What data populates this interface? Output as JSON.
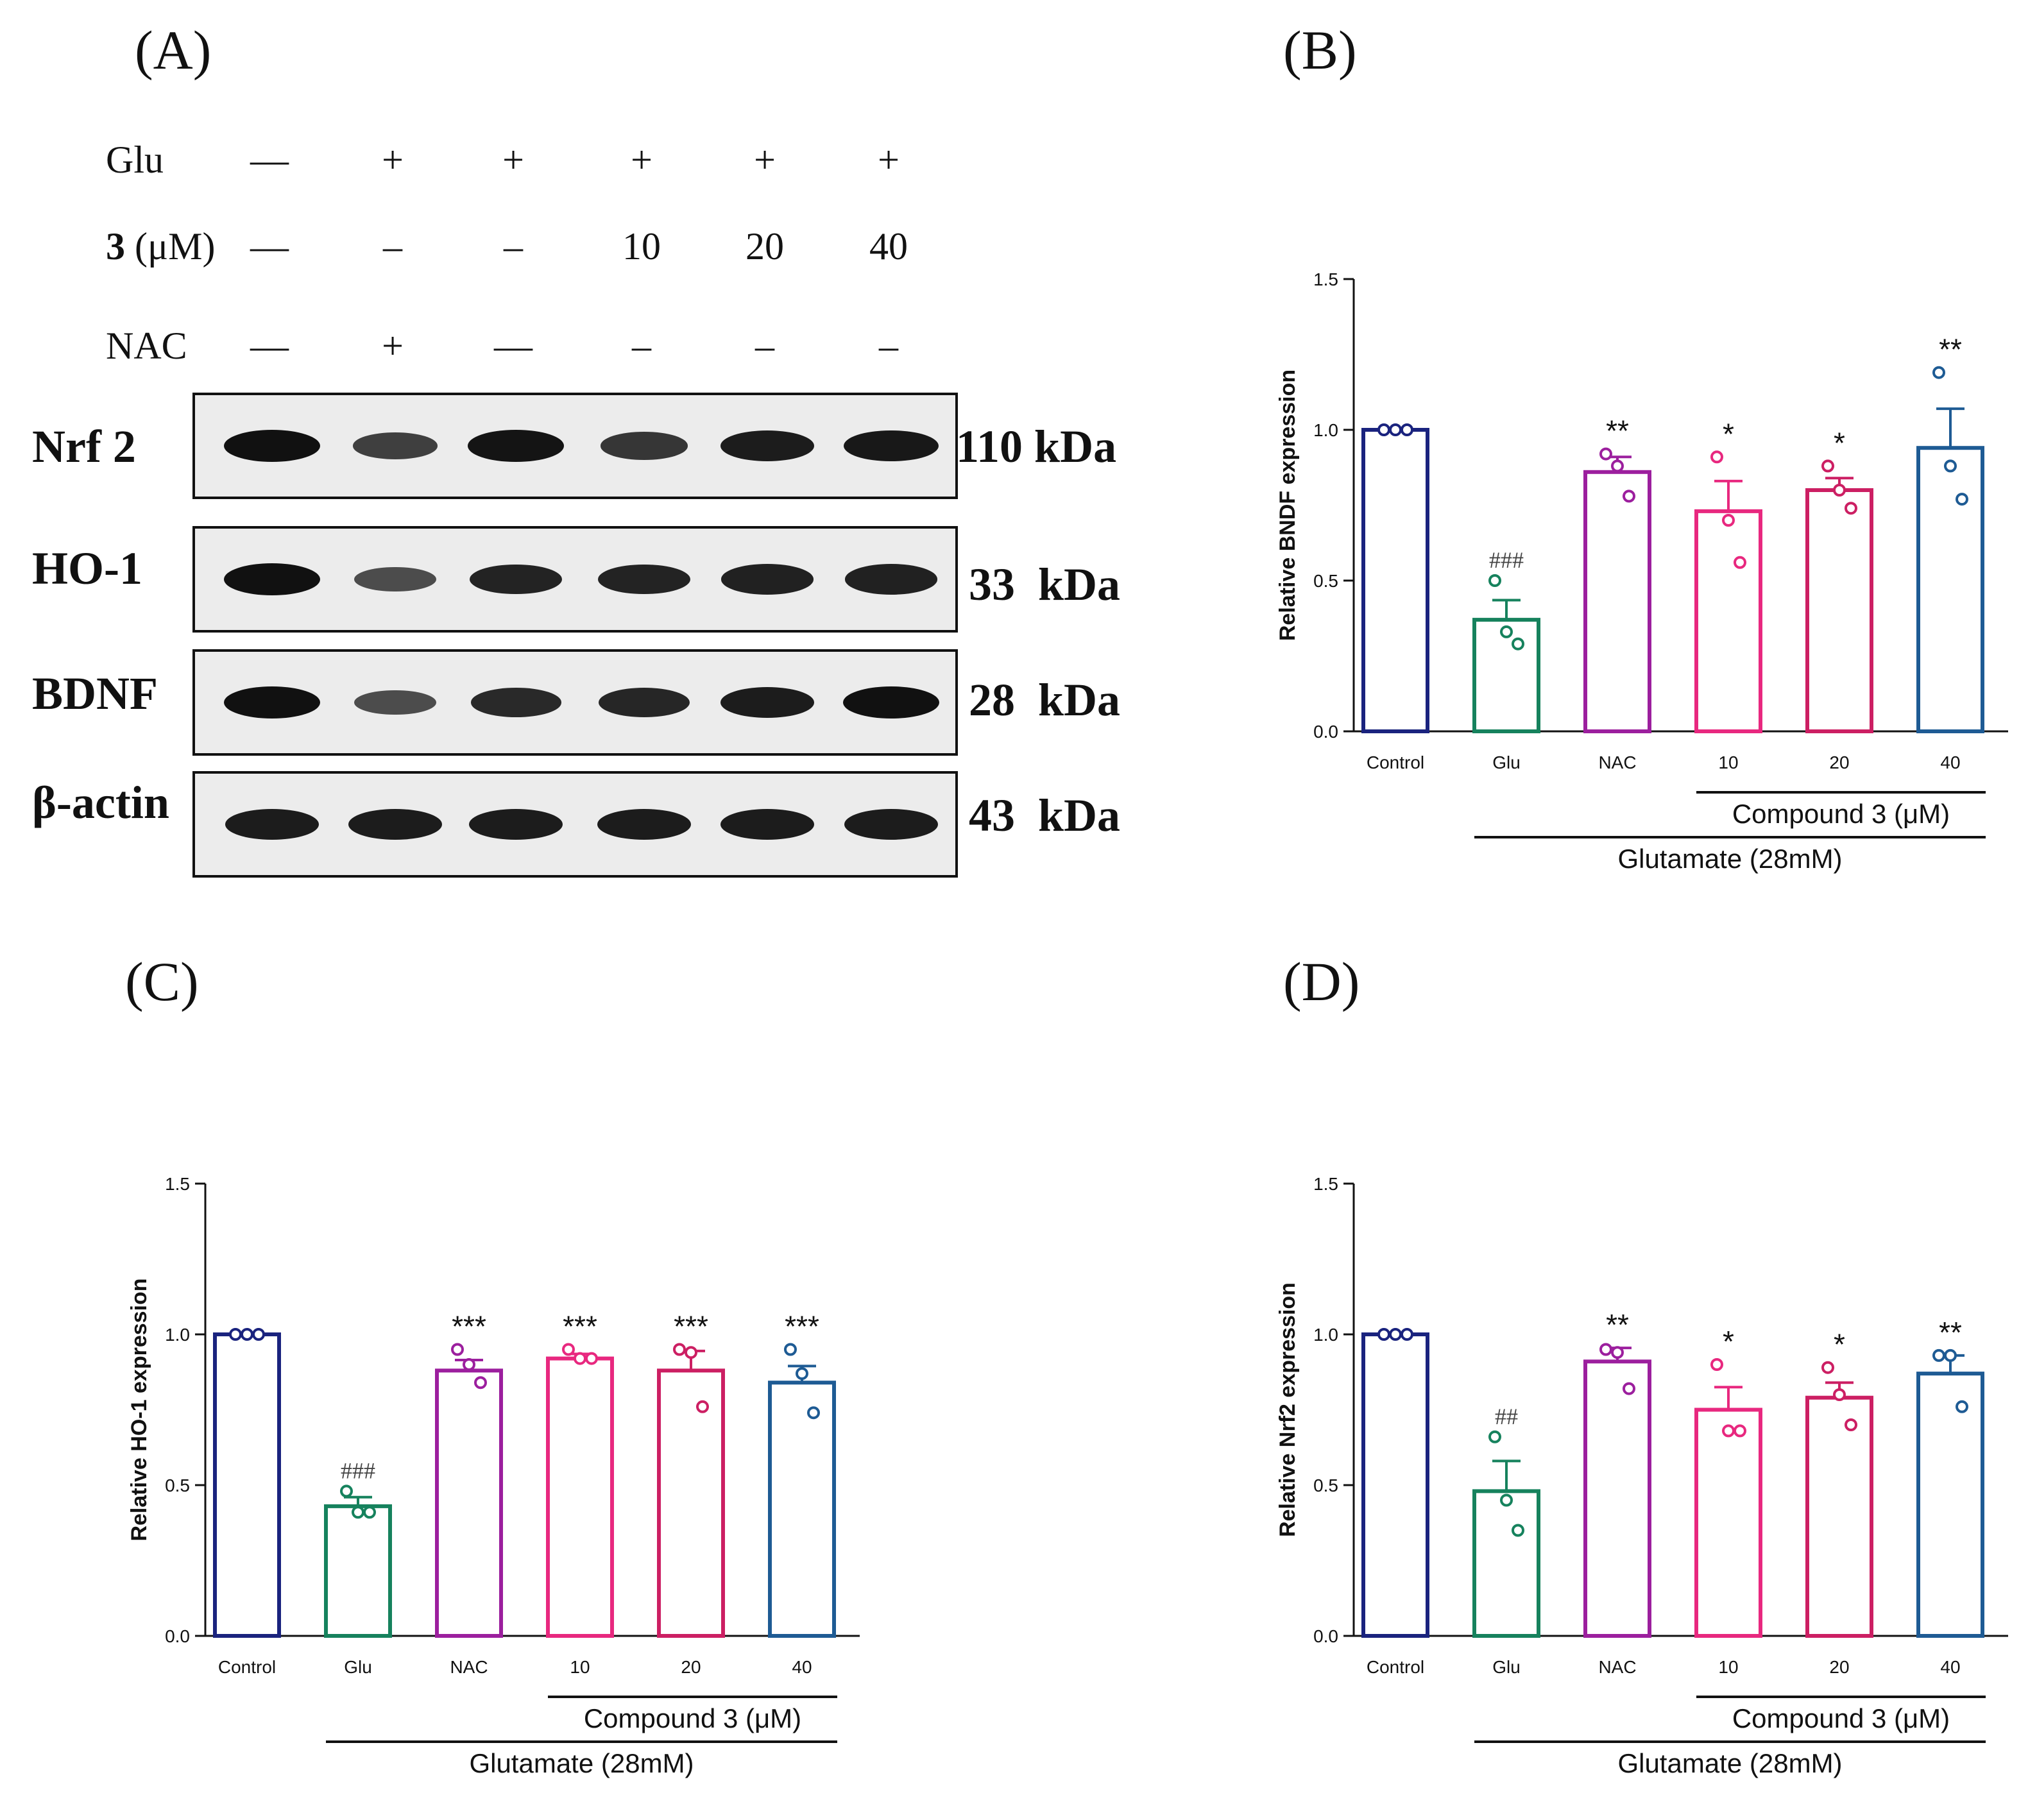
{
  "panel_letters": {
    "A": "(A)",
    "B": "(B)",
    "C": "(C)",
    "D": "(D)"
  },
  "western_blot": {
    "treatments": [
      {
        "label": "Glu",
        "bold_prefix": "",
        "cells": [
          "—",
          "+",
          "+",
          "+",
          "+",
          "+"
        ]
      },
      {
        "label": " (μM)",
        "bold_prefix": "3",
        "cells": [
          "—",
          "–",
          "–",
          "10",
          "20",
          "40"
        ]
      },
      {
        "label": "NAC",
        "bold_prefix": "",
        "cells": [
          "—",
          "+",
          "—",
          "–",
          "–",
          "–"
        ]
      }
    ],
    "proteins": [
      {
        "name": "Nrf 2",
        "kda": "110 kDa",
        "intensity": [
          1.0,
          0.62,
          0.98,
          0.7,
          0.9,
          0.95
        ]
      },
      {
        "name": "HO-1",
        "kda": "33  kDa",
        "intensity": [
          1.0,
          0.5,
          0.85,
          0.85,
          0.88,
          0.88
        ]
      },
      {
        "name": "BDNF",
        "kda": "28  kDa",
        "intensity": [
          1.0,
          0.5,
          0.8,
          0.82,
          0.9,
          1.0
        ]
      },
      {
        "name": "β-actin",
        "kda": "43  kDa",
        "intensity": [
          0.9,
          0.9,
          0.9,
          0.9,
          0.9,
          0.9
        ]
      }
    ]
  },
  "chart_data": [
    {
      "type": "bar",
      "panel": "B",
      "title": "",
      "ylabel": "Relative BNDF expression",
      "xlabel": "",
      "ylim": [
        0.0,
        1.5
      ],
      "yticks": [
        "0.0",
        "0.5",
        "1.0",
        "1.5"
      ],
      "categories": [
        "Control",
        "Glu",
        "NAC",
        "10",
        "20",
        "40"
      ],
      "colors": [
        "#1a237e",
        "#16825d",
        "#9c1f9e",
        "#e8287f",
        "#cc1f63",
        "#1e5b94"
      ],
      "values": [
        1.0,
        0.37,
        0.86,
        0.73,
        0.8,
        0.94
      ],
      "errors": [
        0.0,
        0.065,
        0.05,
        0.1,
        0.04,
        0.13
      ],
      "points": [
        [
          1.0,
          1.0,
          1.0
        ],
        [
          0.5,
          0.33,
          0.29
        ],
        [
          0.92,
          0.88,
          0.78
        ],
        [
          0.91,
          0.7,
          0.56
        ],
        [
          0.88,
          0.8,
          0.74
        ],
        [
          1.19,
          0.88,
          0.77
        ]
      ],
      "significance": [
        "",
        "###",
        "**",
        "*",
        "*",
        "**"
      ],
      "bracket_compound": "Compound 3 (μM)",
      "bracket_glutamate": "Glutamate (28mM)"
    },
    {
      "type": "bar",
      "panel": "C",
      "title": "",
      "ylabel": "Relative HO-1 expression",
      "xlabel": "",
      "ylim": [
        0.0,
        1.5
      ],
      "yticks": [
        "0.0",
        "0.5",
        "1.0",
        "1.5"
      ],
      "categories": [
        "Control",
        "Glu",
        "NAC",
        "10",
        "20",
        "40"
      ],
      "colors": [
        "#1a237e",
        "#16825d",
        "#9c1f9e",
        "#e8287f",
        "#cc1f63",
        "#1e5b94"
      ],
      "values": [
        1.0,
        0.43,
        0.88,
        0.92,
        0.88,
        0.84
      ],
      "errors": [
        0.0,
        0.03,
        0.035,
        0.015,
        0.065,
        0.055
      ],
      "points": [
        [
          1.0,
          1.0,
          1.0
        ],
        [
          0.48,
          0.41,
          0.41
        ],
        [
          0.95,
          0.9,
          0.84
        ],
        [
          0.95,
          0.92,
          0.92
        ],
        [
          0.95,
          0.94,
          0.76
        ],
        [
          0.95,
          0.87,
          0.74
        ]
      ],
      "significance": [
        "",
        "###",
        "***",
        "***",
        "***",
        "***"
      ],
      "bracket_compound": "Compound 3 (μM)",
      "bracket_glutamate": "Glutamate (28mM)"
    },
    {
      "type": "bar",
      "panel": "D",
      "title": "",
      "ylabel": "Relative Nrf2 expression",
      "xlabel": "",
      "ylim": [
        0.0,
        1.5
      ],
      "yticks": [
        "0.0",
        "0.5",
        "1.0",
        "1.5"
      ],
      "categories": [
        "Control",
        "Glu",
        "NAC",
        "10",
        "20",
        "40"
      ],
      "colors": [
        "#1a237e",
        "#16825d",
        "#9c1f9e",
        "#e8287f",
        "#cc1f63",
        "#1e5b94"
      ],
      "values": [
        1.0,
        0.48,
        0.91,
        0.75,
        0.79,
        0.87
      ],
      "errors": [
        0.0,
        0.1,
        0.045,
        0.075,
        0.05,
        0.06
      ],
      "points": [
        [
          1.0,
          1.0,
          1.0
        ],
        [
          0.66,
          0.45,
          0.35
        ],
        [
          0.95,
          0.94,
          0.82
        ],
        [
          0.9,
          0.68,
          0.68
        ],
        [
          0.89,
          0.8,
          0.7
        ],
        [
          0.93,
          0.93,
          0.76
        ]
      ],
      "significance": [
        "",
        "##",
        "**",
        "*",
        "*",
        "**"
      ],
      "bracket_compound": "Compound 3 (μM)",
      "bracket_glutamate": "Glutamate (28mM)"
    }
  ]
}
